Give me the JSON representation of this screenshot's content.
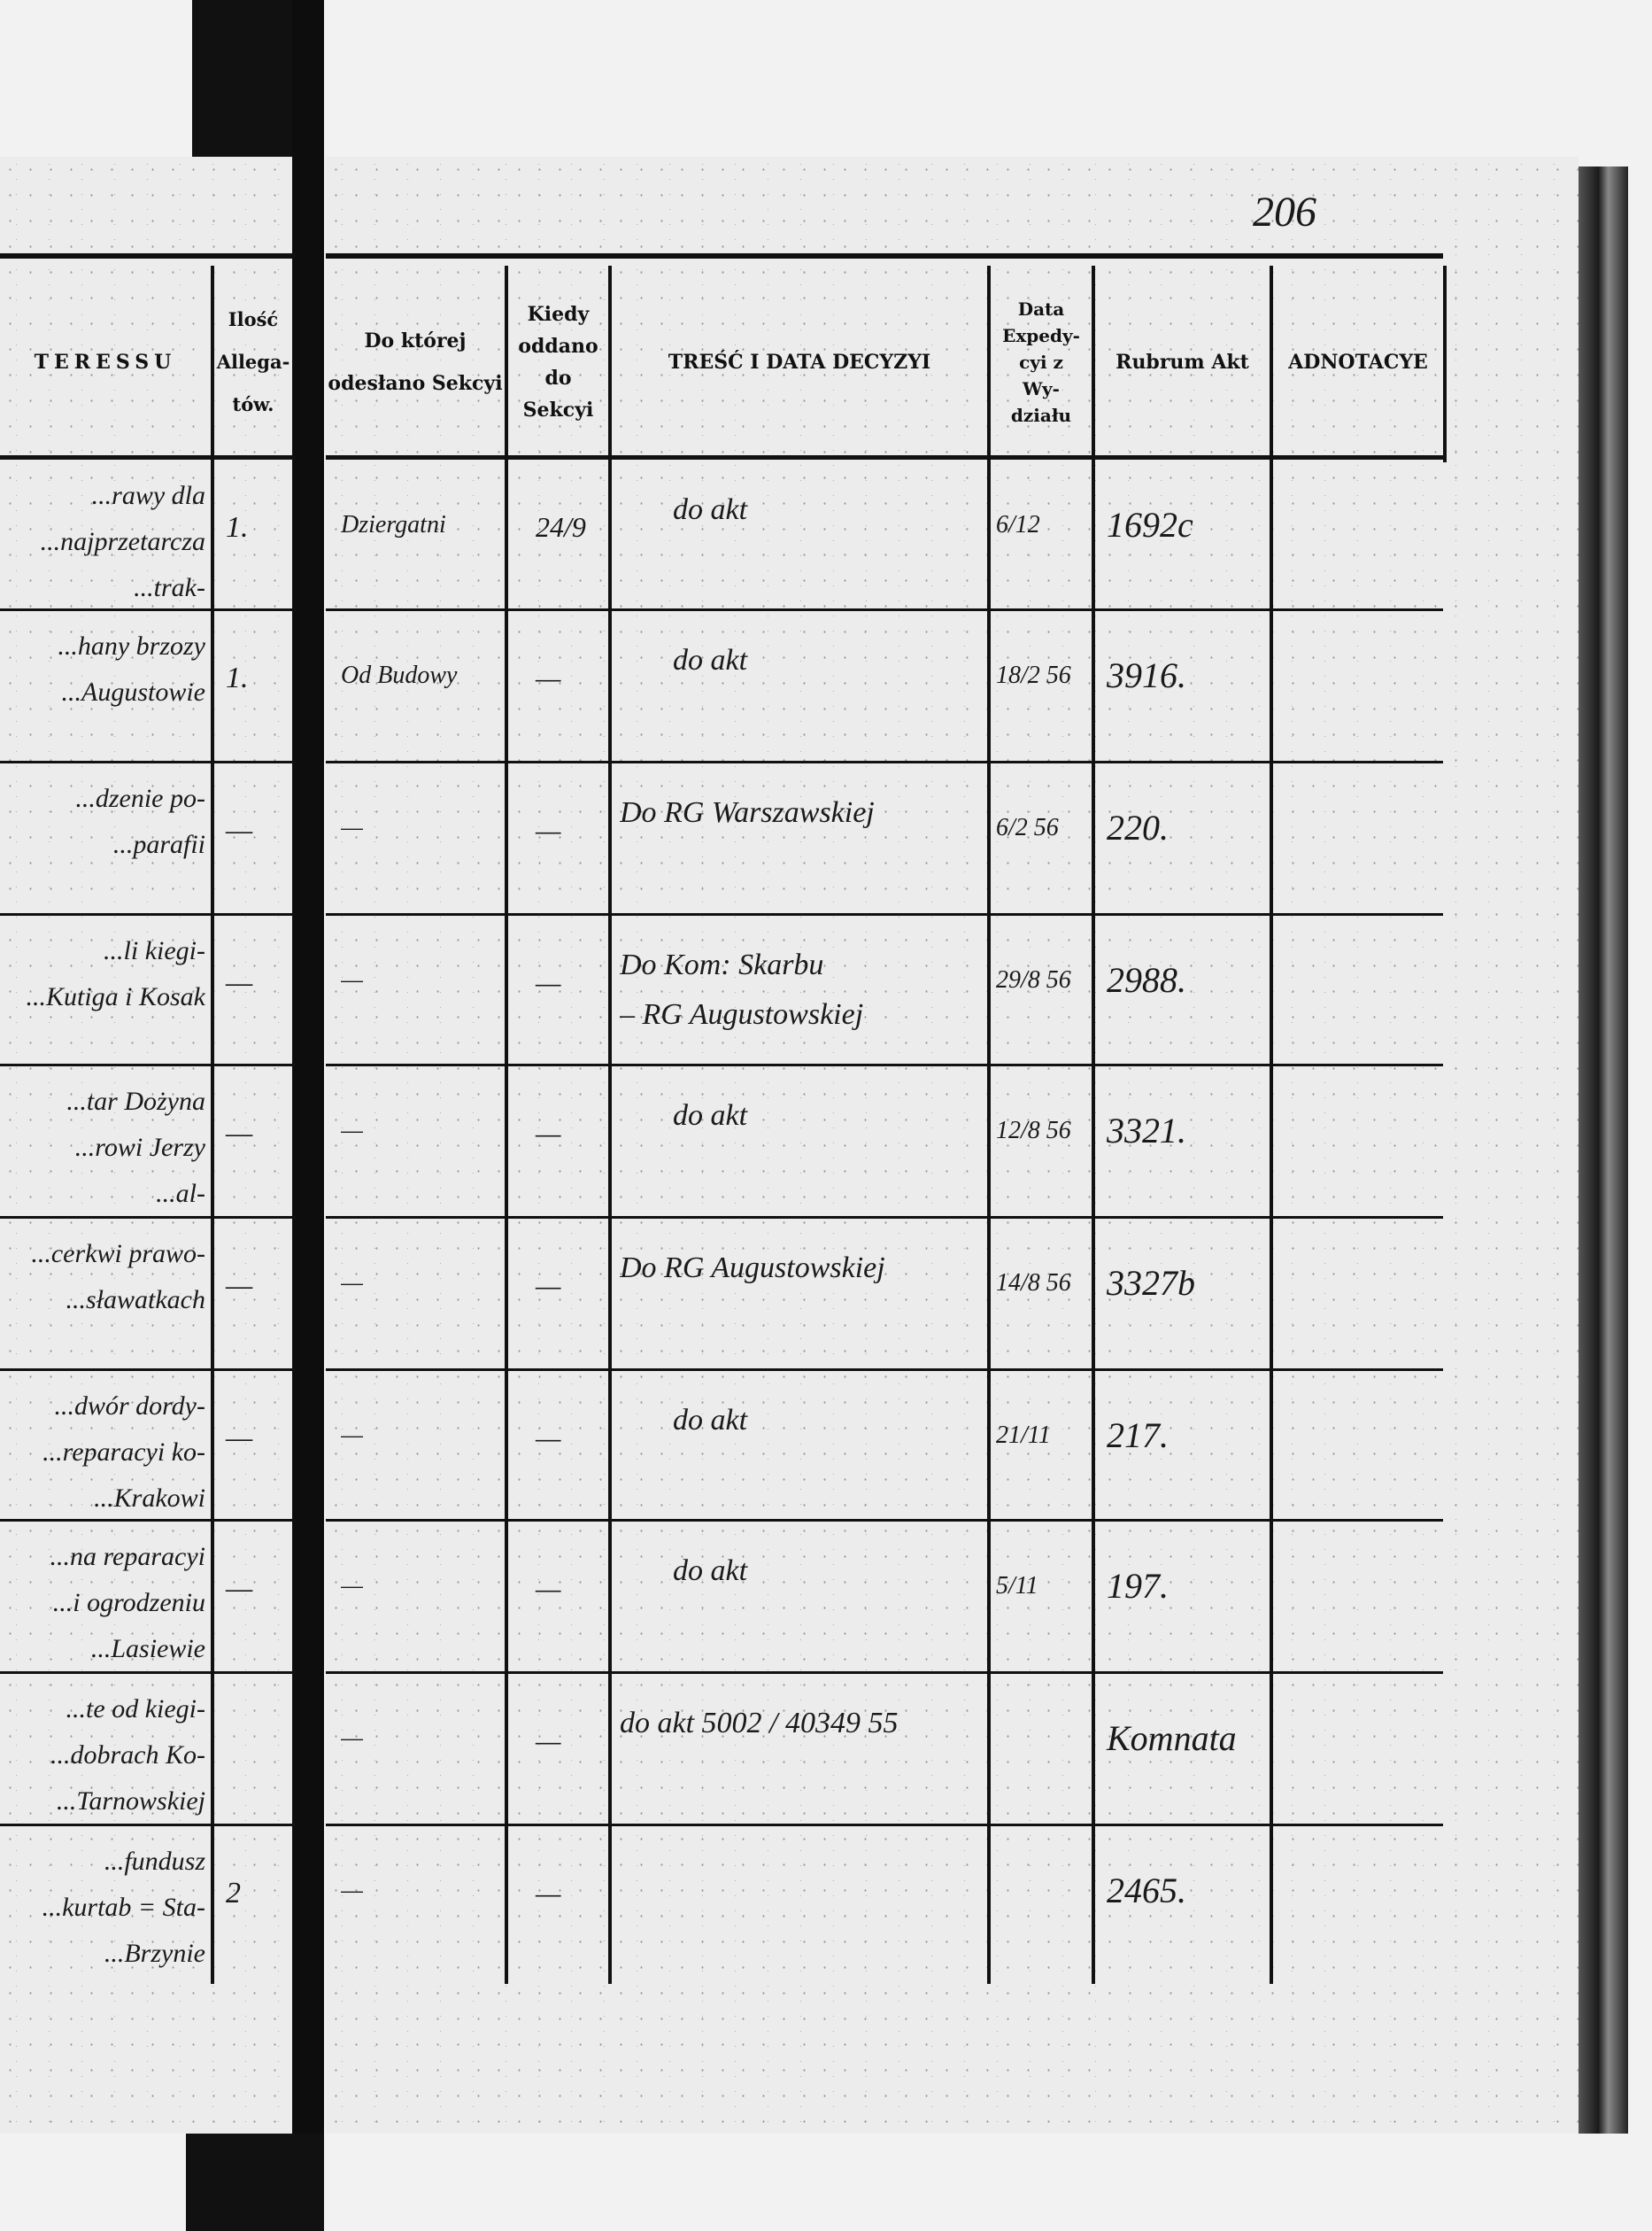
{
  "page_number": "206",
  "left_page": {
    "headers": {
      "interest_fragment": "TERESSU",
      "allegaty": "Ilość Allega-tów."
    },
    "rows": [
      {
        "text": [
          "...rawy dla",
          "...najprzetarcza",
          "...trak-"
        ],
        "allegaty": "1."
      },
      {
        "text": [
          "...hany brzozy",
          "...Augustowie"
        ],
        "allegaty": "1."
      },
      {
        "text": [
          "...dzenie po-",
          "...parafii"
        ],
        "allegaty": "—"
      },
      {
        "text": [
          "...li kiegi-",
          "...Kutiga i Kosak"
        ],
        "allegaty": "—"
      },
      {
        "text": [
          "...tar Dożyna",
          "...rowi Jerzy",
          "...al-"
        ],
        "allegaty": "—"
      },
      {
        "text": [
          "...cerkwi prawo-",
          "...sławatkach"
        ],
        "allegaty": "—"
      },
      {
        "text": [
          "...dwór dordy-",
          "...reparacyi ko-",
          "...Krakowi"
        ],
        "allegaty": "—"
      },
      {
        "text": [
          "...na reparacyi",
          "...i ogrodzeniu",
          "...Lasiewie"
        ],
        "allegaty": "—"
      },
      {
        "text": [
          "...te od kiegi-",
          "...dobrach Ko-",
          "...Tarnowskiej"
        ],
        "allegaty": ""
      },
      {
        "text": [
          "...fundusz",
          "...kurtab = Sta-",
          "...Brzynie"
        ],
        "allegaty": "2"
      }
    ]
  },
  "right_page": {
    "headers": {
      "sekcja": "Do której odesłano Sekcyi",
      "kiedy": "Kiedy oddano do Sekcyi",
      "tresc": "TREŚĆ I DATA DECYZYI",
      "data": "Data Expedy-cyi z Wy-działu",
      "rubrum": "Rubrum Akt",
      "adnotacye": "ADNOTACYE"
    },
    "rows": [
      {
        "sekcja": "Dziergatni",
        "kiedy": "24/9",
        "tresc": [
          "do akt"
        ],
        "data": "6/12",
        "rubrum": "1692c",
        "adnotacye": ""
      },
      {
        "sekcja": "Od Budowy",
        "kiedy": "—",
        "tresc": [
          "do akt"
        ],
        "data": "18/2 56",
        "rubrum": "3916.",
        "adnotacye": ""
      },
      {
        "sekcja": "—",
        "kiedy": "—",
        "tresc": [
          "Do RG Warszawskiej"
        ],
        "data": "6/2 56",
        "rubrum": "220.",
        "adnotacye": ""
      },
      {
        "sekcja": "—",
        "kiedy": "—",
        "tresc": [
          "Do Kom: Skarbu",
          "– RG Augustowskiej"
        ],
        "data": "29/8 56",
        "rubrum": "2988.",
        "adnotacye": ""
      },
      {
        "sekcja": "—",
        "kiedy": "—",
        "tresc": [
          "do akt"
        ],
        "data": "12/8 56",
        "rubrum": "3321.",
        "adnotacye": ""
      },
      {
        "sekcja": "—",
        "kiedy": "—",
        "tresc": [
          "Do RG Augustowskiej"
        ],
        "data": "14/8 56",
        "rubrum": "3327b",
        "adnotacye": ""
      },
      {
        "sekcja": "—",
        "kiedy": "—",
        "tresc": [
          "do akt"
        ],
        "data": "21/11",
        "rubrum": "217.",
        "adnotacye": ""
      },
      {
        "sekcja": "—",
        "kiedy": "—",
        "tresc": [
          "do akt"
        ],
        "data": "5/11",
        "rubrum": "197.",
        "adnotacye": ""
      },
      {
        "sekcja": "—",
        "kiedy": "—",
        "tresc": [
          "do akt  5002 / 40349  55"
        ],
        "data": "",
        "rubrum": "Komnata",
        "adnotacye": ""
      },
      {
        "sekcja": "—",
        "kiedy": "—",
        "tresc": [
          ""
        ],
        "data": "",
        "rubrum": "2465.",
        "adnotacye": ""
      }
    ]
  }
}
